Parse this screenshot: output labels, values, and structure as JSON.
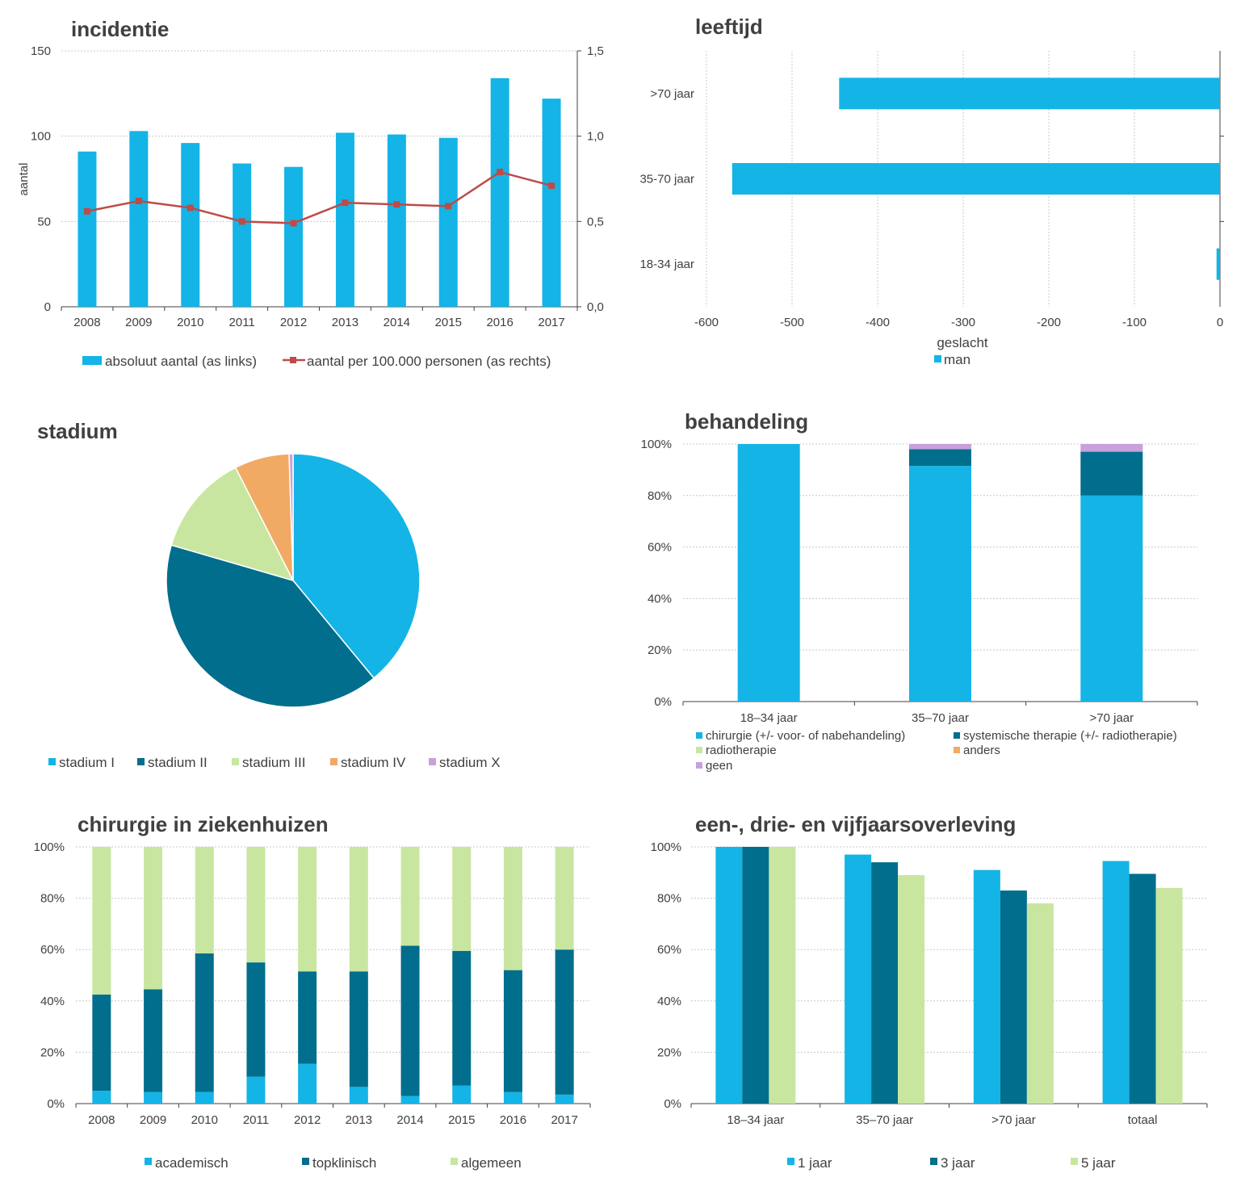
{
  "colors": {
    "light_blue": "#14B4E6",
    "dark_teal": "#006E8C",
    "light_green": "#C8E6A0",
    "orange": "#F0AA64",
    "lilac": "#C8A0DC",
    "red": "#BE4B48"
  },
  "chart_data": [
    {
      "id": "incidentie",
      "type": "bar",
      "title": "incidentie",
      "ylabel": "aantal",
      "categories": [
        "2008",
        "2009",
        "2010",
        "2011",
        "2012",
        "2013",
        "2014",
        "2015",
        "2016",
        "2017"
      ],
      "series": [
        {
          "name": "absoluut aantal (as links)",
          "type": "bar",
          "axis": "left",
          "values": [
            91,
            103,
            96,
            84,
            82,
            102,
            101,
            99,
            134,
            122
          ]
        },
        {
          "name": "aantal per 100.000 personen (as rechts)",
          "type": "line",
          "axis": "right",
          "values": [
            0.56,
            0.62,
            0.58,
            0.5,
            0.49,
            0.61,
            0.6,
            0.59,
            0.79,
            0.71
          ]
        }
      ],
      "ylim": [
        0,
        150
      ],
      "yticks": [
        "0",
        "50",
        "100",
        "150"
      ],
      "y2lim": [
        0,
        1.5
      ],
      "y2ticks": [
        "0,0",
        "0,5",
        "1,0",
        "1,5"
      ],
      "grid": true,
      "legend_position": "bottom"
    },
    {
      "id": "leeftijd",
      "type": "bar",
      "orientation": "horizontal",
      "title": "leeftijd",
      "categories": [
        ">70 jaar",
        "35-70 jaar",
        "18-34 jaar"
      ],
      "legend_title": "geslacht",
      "series": [
        {
          "name": "man",
          "values": [
            -445,
            -570,
            -4
          ]
        }
      ],
      "xlim": [
        -600,
        0
      ],
      "xticks": [
        "-600",
        "-500",
        "-400",
        "-300",
        "-200",
        "-100",
        "0"
      ],
      "grid": true,
      "legend_position": "bottom"
    },
    {
      "id": "stadium",
      "type": "pie",
      "title": "stadium",
      "labels": [
        "stadium I",
        "stadium II",
        "stadium III",
        "stadium IV",
        "stadium X"
      ],
      "values": [
        39.0,
        40.5,
        13.0,
        7.0,
        0.5
      ],
      "legend_position": "bottom"
    },
    {
      "id": "behandeling",
      "type": "bar",
      "stacked": true,
      "title": "behandeling",
      "categories": [
        "18–34 jaar",
        "35–70 jaar",
        ">70 jaar"
      ],
      "series": [
        {
          "name": "chirurgie (+/- voor- of nabehandeling)",
          "values": [
            100,
            91.5,
            80
          ]
        },
        {
          "name": "systemische therapie (+/- radiotherapie)",
          "values": [
            0,
            6.5,
            17
          ]
        },
        {
          "name": "radiotherapie",
          "values": [
            0,
            0,
            0
          ]
        },
        {
          "name": "anders",
          "values": [
            0,
            0,
            0
          ]
        },
        {
          "name": "geen",
          "values": [
            0,
            2,
            3
          ]
        }
      ],
      "ylim": [
        0,
        100
      ],
      "yticks": [
        "0%",
        "20%",
        "40%",
        "60%",
        "80%",
        "100%"
      ],
      "grid": true,
      "legend_position": "bottom"
    },
    {
      "id": "chirurgie",
      "type": "bar",
      "stacked": true,
      "title": "chirurgie in ziekenhuizen",
      "categories": [
        "2008",
        "2009",
        "2010",
        "2011",
        "2012",
        "2013",
        "2014",
        "2015",
        "2016",
        "2017"
      ],
      "series": [
        {
          "name": "academisch",
          "values": [
            5,
            4.5,
            4.5,
            10.5,
            15.5,
            6.5,
            3,
            7,
            4.5,
            3.5
          ]
        },
        {
          "name": "topklinisch",
          "values": [
            37.5,
            40,
            54,
            44.5,
            36,
            45,
            58.5,
            52.5,
            47.5,
            56.5
          ]
        },
        {
          "name": "algemeen",
          "values": [
            57.5,
            55.5,
            41.5,
            45,
            48.5,
            48.5,
            38.5,
            40.5,
            48,
            40
          ]
        }
      ],
      "ylim": [
        0,
        100
      ],
      "yticks": [
        "0%",
        "20%",
        "40%",
        "60%",
        "80%",
        "100%"
      ],
      "grid": true,
      "legend_position": "bottom"
    },
    {
      "id": "overleving",
      "type": "bar",
      "title": "een-, drie- en vijfjaarsoverleving",
      "categories": [
        "18–34 jaar",
        "35–70 jaar",
        ">70 jaar",
        "totaal"
      ],
      "series": [
        {
          "name": "1 jaar",
          "values": [
            100,
            97,
            91,
            94.5
          ]
        },
        {
          "name": "3 jaar",
          "values": [
            100,
            94,
            83,
            89.5
          ]
        },
        {
          "name": "5 jaar",
          "values": [
            100,
            89,
            78,
            84
          ]
        }
      ],
      "ylim": [
        0,
        100
      ],
      "yticks": [
        "0%",
        "20%",
        "40%",
        "60%",
        "80%",
        "100%"
      ],
      "grid": true,
      "legend_position": "bottom"
    }
  ]
}
